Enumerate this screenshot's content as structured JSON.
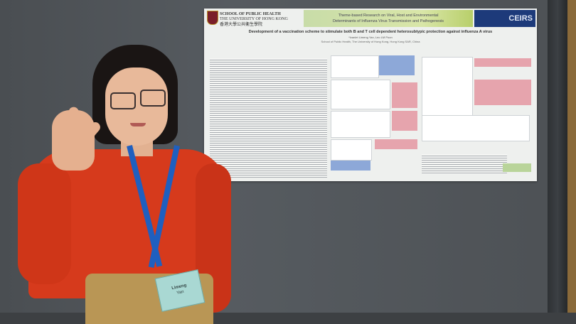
{
  "poster": {
    "school_line1": "SCHOOL OF PUBLIC HEALTH",
    "school_line2": "THE UNIVERSITY OF HONG KONG",
    "school_line3": "香港大學公共衞生學院",
    "theme_line1": "Theme-based Research on Viral, Host and Environmental",
    "theme_line2": "Determinants of Influenza Virus Transmission and Pathogenesis",
    "ceirs_logo": "CEIRS",
    "title": "Development of a vaccination scheme to stimulate both B and T cell dependent heterosubtypic protection against influenza A virus",
    "author": "*Ivanlet Limeng Yan, Leo LM Poon",
    "affiliation": "School of Public Health, The University of Hong Kong, Hong Kong SAR, China"
  },
  "badge": {
    "first_name": "Limeng",
    "last_name": "Yan"
  },
  "colors": {
    "shirt": "#d63a1c",
    "lanyard": "#1f5fbf",
    "wall": "#50555a",
    "ceirs": "#1d3a7a"
  }
}
